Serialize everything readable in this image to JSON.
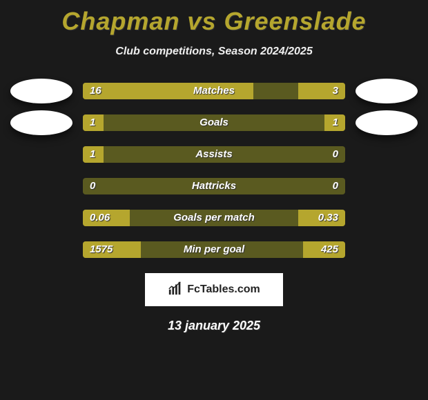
{
  "title": "Chapman vs Greenslade",
  "title_color": "#b5a62e",
  "subtitle": "Club competitions, Season 2024/2025",
  "background_color": "#1a1a1a",
  "colors": {
    "bar_fill": "#b5a62e",
    "bar_track": "#5a5a20",
    "text": "#ffffff",
    "badge_bg": "#ffffff",
    "badge_text": "#222222"
  },
  "avatars": {
    "left_rows": [
      0,
      1
    ],
    "right_rows": [
      0,
      1
    ]
  },
  "stats": [
    {
      "label": "Matches",
      "left_val": "16",
      "right_val": "3",
      "left_pct": 65,
      "right_pct": 18
    },
    {
      "label": "Goals",
      "left_val": "1",
      "right_val": "1",
      "left_pct": 8,
      "right_pct": 8
    },
    {
      "label": "Assists",
      "left_val": "1",
      "right_val": "0",
      "left_pct": 8,
      "right_pct": 0
    },
    {
      "label": "Hattricks",
      "left_val": "0",
      "right_val": "0",
      "left_pct": 0,
      "right_pct": 0
    },
    {
      "label": "Goals per match",
      "left_val": "0.06",
      "right_val": "0.33",
      "left_pct": 18,
      "right_pct": 18
    },
    {
      "label": "Min per goal",
      "left_val": "1575",
      "right_val": "425",
      "left_pct": 22,
      "right_pct": 16
    }
  ],
  "typography": {
    "title_fontsize": 36,
    "subtitle_fontsize": 16,
    "label_fontsize": 15,
    "date_fontsize": 18
  },
  "badge": {
    "text": "FcTables.com",
    "icon": "chart-bars-icon"
  },
  "date": "13 january 2025"
}
